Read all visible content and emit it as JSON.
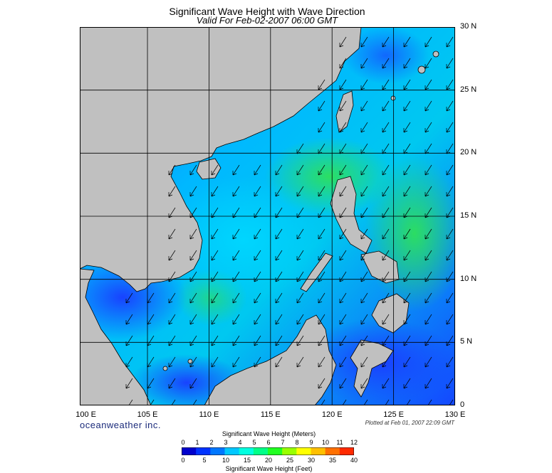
{
  "title": "Significant Wave Height with Wave Direction",
  "subtitle": "Valid For Feb-02-2007 06:00 GMT",
  "brand": "oceanweather inc.",
  "plotted": "Plotted at Feb 01, 2007 22:09 GMT",
  "map": {
    "lat_labels": [
      "30 N",
      "25 N",
      "20 N",
      "15 N",
      "10 N",
      "5 N",
      "0"
    ],
    "lon_labels": [
      "100 E",
      "105 E",
      "110 E",
      "115 E",
      "120 E",
      "125 E",
      "130 E"
    ],
    "lat_range": [
      0,
      30
    ],
    "lon_range": [
      99.5,
      130
    ],
    "land_color": "#c0c0c0",
    "grid_color": "#000000",
    "arrow_direction": "towards south-west",
    "colors": {
      "low": "#1a3cff",
      "mid": "#00e0ff",
      "high": "#2ee05a"
    }
  },
  "colorbar": {
    "title_meters": "Significant Wave Height (Meters)",
    "title_feet": "Significant Wave Height (Feet)",
    "meters_ticks": [
      "0",
      "1",
      "2",
      "3",
      "4",
      "5",
      "6",
      "7",
      "8",
      "9",
      "10",
      "11",
      "12"
    ],
    "feet_ticks": [
      "0",
      "5",
      "10",
      "15",
      "20",
      "25",
      "30",
      "35",
      "40"
    ],
    "colors": [
      "#0000cc",
      "#0033ff",
      "#0077ff",
      "#00c8ff",
      "#00ffe0",
      "#00ff88",
      "#22ff22",
      "#99ff00",
      "#ffff00",
      "#ffc000",
      "#ff7000",
      "#ff2a00"
    ]
  }
}
